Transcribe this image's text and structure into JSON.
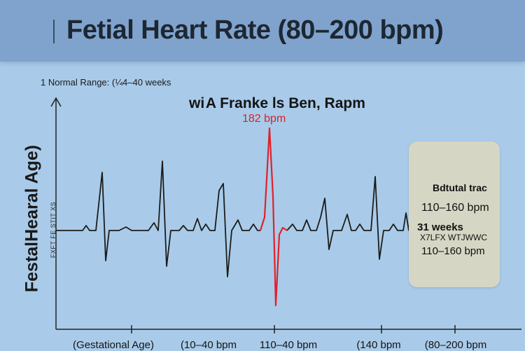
{
  "header": {
    "title": "Fetial Heart Rate (80–200 bpm)"
  },
  "note": "1 Normal Range: (¼4–40 weeks",
  "chart_data": {
    "type": "line",
    "title": "Fetial Heart Rate (80–200 bpm)",
    "subtitle": "wi A Franke ls Ben, Rapm",
    "ylabel": "FestalHearal Age)",
    "ytick_text": "FXFT FE STIT XS",
    "xlabel": "",
    "x_tick_labels": [
      "(Gestational Age)",
      "(10–40 bpm",
      "110–40 bpm",
      "(140 bpm",
      "(80–200 bpm"
    ],
    "peak_annotation": "182 bpm",
    "grid": false,
    "legend": "none",
    "series": [
      {
        "color": "#1c1c1c"
      },
      {
        "color": "#e0212b"
      }
    ]
  },
  "info_box": {
    "line1": "Bdtutal trac",
    "line2": "110–160 bpm",
    "line3": "31 weeks",
    "line4": "X7LFX WTJWWC",
    "line5": "110–160 bpm"
  }
}
